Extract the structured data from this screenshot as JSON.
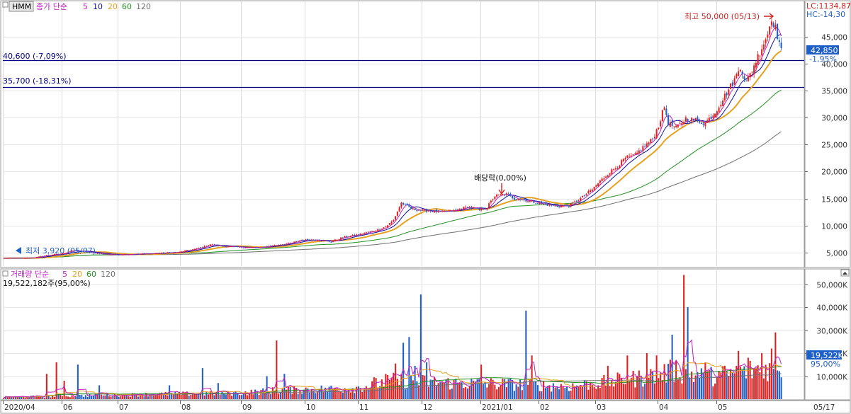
{
  "header": {
    "symbol": "HMM",
    "price_legend": {
      "label": "종가 단순",
      "periods": [
        "5",
        "10",
        "20",
        "60",
        "120"
      ]
    },
    "lc": "LC:1134,87",
    "hc": "HC:-14,30"
  },
  "annotations": {
    "high": "최고 50,000 (05/13)",
    "low": "최저 3,920 (05/07)",
    "dividend": "배당락(0,00%)",
    "level1": "40,600 (-7,09%)",
    "level2": "35,700 (-18,31%)",
    "current_price": "42,850",
    "current_change": "-1,95%"
  },
  "volume_legend": {
    "label": "거래량 단순",
    "periods": [
      "5",
      "20",
      "60",
      "120"
    ],
    "value": "19,522,182주(95,00%)"
  },
  "volume_current": {
    "value": "19,522K",
    "pct": "95,00%"
  },
  "colors": {
    "up": "#e02020",
    "down": "#1f5fc8",
    "ma5": "#c020c0",
    "ma10": "#1010a0",
    "ma20": "#e8a020",
    "ma60": "#209020",
    "ma120": "#707070",
    "hline": "#000080"
  },
  "chart_data": [
    {
      "type": "candlestick",
      "title": "HMM",
      "x_ticks": [
        "2020/04",
        "06",
        "07",
        "08",
        "09",
        "10",
        "11",
        "12",
        "2021/01",
        "02",
        "03",
        "04",
        "05",
        "05/17"
      ],
      "y_ticks": [
        "5,000",
        "10,000",
        "15,000",
        "20,000",
        "25,000",
        "30,000",
        "35,000",
        "40,000",
        "45,000"
      ],
      "y_values": [
        5000,
        10000,
        15000,
        20000,
        25000,
        30000,
        35000,
        40000,
        45000
      ],
      "ylim": [
        2500,
        51500
      ],
      "horizontal_lines": [
        40600,
        35700
      ],
      "close_anchors": [
        [
          0,
          3950
        ],
        [
          10,
          3950
        ],
        [
          16,
          4100
        ],
        [
          22,
          4500
        ],
        [
          30,
          4800
        ],
        [
          35,
          5400
        ],
        [
          45,
          5000
        ],
        [
          55,
          4600
        ],
        [
          75,
          4800
        ],
        [
          90,
          5100
        ],
        [
          100,
          5800
        ],
        [
          106,
          6500
        ],
        [
          112,
          6200
        ],
        [
          120,
          6000
        ],
        [
          130,
          5900
        ],
        [
          140,
          6400
        ],
        [
          148,
          6800
        ],
        [
          152,
          7300
        ],
        [
          160,
          7400
        ],
        [
          168,
          7000
        ],
        [
          172,
          7600
        ],
        [
          175,
          7900
        ],
        [
          180,
          8200
        ],
        [
          190,
          9000
        ],
        [
          196,
          9800
        ],
        [
          200,
          11000
        ],
        [
          204,
          14200
        ],
        [
          210,
          13000
        ],
        [
          215,
          12800
        ],
        [
          225,
          12500
        ],
        [
          232,
          12800
        ],
        [
          238,
          13500
        ],
        [
          244,
          12900
        ],
        [
          248,
          13400
        ],
        [
          252,
          15500
        ],
        [
          258,
          15800
        ],
        [
          262,
          15000
        ],
        [
          268,
          14700
        ],
        [
          275,
          14100
        ],
        [
          283,
          13600
        ],
        [
          290,
          13700
        ],
        [
          296,
          15000
        ],
        [
          302,
          16700
        ],
        [
          306,
          18200
        ],
        [
          310,
          19600
        ],
        [
          315,
          21000
        ],
        [
          319,
          22500
        ],
        [
          324,
          23000
        ],
        [
          328,
          24500
        ],
        [
          333,
          26000
        ],
        [
          336,
          28500
        ],
        [
          339,
          32000
        ],
        [
          341,
          29000
        ],
        [
          345,
          28000
        ],
        [
          350,
          29800
        ],
        [
          355,
          29500
        ],
        [
          360,
          29000
        ],
        [
          365,
          31000
        ],
        [
          370,
          34000
        ],
        [
          373,
          35800
        ],
        [
          375,
          37000
        ],
        [
          378,
          39500
        ],
        [
          381,
          36500
        ],
        [
          383,
          38000
        ],
        [
          386,
          40500
        ],
        [
          389,
          43000
        ],
        [
          392,
          45500
        ],
        [
          394,
          48500
        ],
        [
          396,
          46500
        ],
        [
          398,
          44000
        ],
        [
          399,
          42850
        ]
      ],
      "volume_ylim": [
        0,
        56000
      ],
      "volume_y_ticks": [
        "10,000K",
        "20,000K",
        "30,000K",
        "40,000K",
        "50,000K"
      ],
      "volume_y_values": [
        10000,
        20000,
        30000,
        40000,
        50000
      ],
      "volume_base": [
        [
          0,
          900
        ],
        [
          60,
          1800
        ],
        [
          80,
          2200
        ],
        [
          120,
          2600
        ],
        [
          140,
          3800
        ],
        [
          180,
          4800
        ],
        [
          200,
          8000
        ],
        [
          230,
          7000
        ],
        [
          260,
          6500
        ],
        [
          290,
          5500
        ],
        [
          310,
          7500
        ],
        [
          330,
          9500
        ],
        [
          345,
          12500
        ],
        [
          360,
          9500
        ],
        [
          380,
          12000
        ],
        [
          399,
          15000
        ]
      ],
      "volume_spikes": [
        [
          22,
          11000
        ],
        [
          27,
          16000
        ],
        [
          31,
          8000
        ],
        [
          38,
          15000
        ],
        [
          49,
          6000
        ],
        [
          85,
          6000
        ],
        [
          102,
          13500
        ],
        [
          110,
          7000
        ],
        [
          135,
          10000
        ],
        [
          140,
          25500
        ],
        [
          144,
          11000
        ],
        [
          190,
          9500
        ],
        [
          196,
          11000
        ],
        [
          201,
          15500
        ],
        [
          205,
          24500
        ],
        [
          208,
          27000
        ],
        [
          211,
          14500
        ],
        [
          214,
          45500
        ],
        [
          217,
          16000
        ],
        [
          245,
          15000
        ],
        [
          268,
          38500
        ],
        [
          271,
          19000
        ],
        [
          310,
          14500
        ],
        [
          320,
          19000
        ],
        [
          330,
          20000
        ],
        [
          335,
          19000
        ],
        [
          343,
          28000
        ],
        [
          349,
          54000
        ],
        [
          351,
          40000
        ],
        [
          360,
          16000
        ],
        [
          377,
          21000
        ],
        [
          382,
          18000
        ],
        [
          389,
          20000
        ],
        [
          394,
          22000
        ],
        [
          396,
          29000
        ]
      ]
    }
  ]
}
